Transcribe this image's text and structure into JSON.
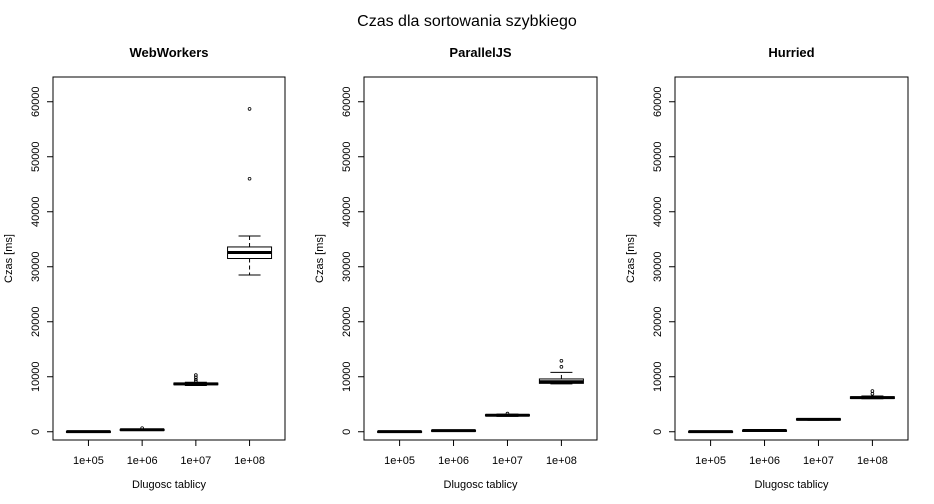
{
  "title": "Czas dla sortowania szybkiego",
  "chart_data": [
    {
      "type": "box",
      "title": "WebWorkers",
      "xlabel": "Dlugosc tablicy",
      "ylabel": "Czas [ms]",
      "categories": [
        "1e+05",
        "1e+06",
        "1e+07",
        "1e+08"
      ],
      "yticks": [
        0,
        10000,
        20000,
        30000,
        40000,
        50000,
        60000
      ],
      "ylim": [
        -1500,
        64500
      ],
      "boxes": [
        {
          "min": 0,
          "q1": 0,
          "median": 30,
          "q3": 60,
          "max": 100,
          "outliers": []
        },
        {
          "min": 250,
          "q1": 300,
          "median": 370,
          "q3": 430,
          "max": 500,
          "outliers": [
            650
          ]
        },
        {
          "min": 8400,
          "q1": 8550,
          "median": 8700,
          "q3": 8850,
          "max": 9000,
          "outliers": [
            9200,
            9500,
            9900,
            10300
          ]
        },
        {
          "min": 28500,
          "q1": 31500,
          "median": 32600,
          "q3": 33600,
          "max": 35600,
          "outliers": [
            46000,
            58700
          ]
        }
      ]
    },
    {
      "type": "box",
      "title": "ParallelJS",
      "xlabel": "Dlugosc tablicy",
      "ylabel": "Czas [ms]",
      "categories": [
        "1e+05",
        "1e+06",
        "1e+07",
        "1e+08"
      ],
      "yticks": [
        0,
        10000,
        20000,
        30000,
        40000,
        50000,
        60000
      ],
      "ylim": [
        -1500,
        64500
      ],
      "boxes": [
        {
          "min": 0,
          "q1": 0,
          "median": 30,
          "q3": 60,
          "max": 100,
          "outliers": []
        },
        {
          "min": 100,
          "q1": 150,
          "median": 200,
          "q3": 260,
          "max": 320,
          "outliers": []
        },
        {
          "min": 2800,
          "q1": 2900,
          "median": 3000,
          "q3": 3100,
          "max": 3200,
          "outliers": [
            3300
          ]
        },
        {
          "min": 8700,
          "q1": 8800,
          "median": 9100,
          "q3": 9600,
          "max": 10800,
          "outliers": [
            11800,
            12900
          ]
        }
      ]
    },
    {
      "type": "box",
      "title": "Hurried",
      "xlabel": "Dlugosc tablicy",
      "ylabel": "Czas [ms]",
      "categories": [
        "1e+05",
        "1e+06",
        "1e+07",
        "1e+08"
      ],
      "yticks": [
        0,
        10000,
        20000,
        30000,
        40000,
        50000,
        60000
      ],
      "ylim": [
        -1500,
        64500
      ],
      "boxes": [
        {
          "min": 0,
          "q1": 0,
          "median": 30,
          "q3": 60,
          "max": 100,
          "outliers": []
        },
        {
          "min": 150,
          "q1": 180,
          "median": 220,
          "q3": 260,
          "max": 300,
          "outliers": []
        },
        {
          "min": 2100,
          "q1": 2150,
          "median": 2250,
          "q3": 2350,
          "max": 2400,
          "outliers": []
        },
        {
          "min": 6000,
          "q1": 6050,
          "median": 6200,
          "q3": 6350,
          "max": 6500,
          "outliers": [
            6900,
            7400
          ]
        }
      ]
    }
  ]
}
